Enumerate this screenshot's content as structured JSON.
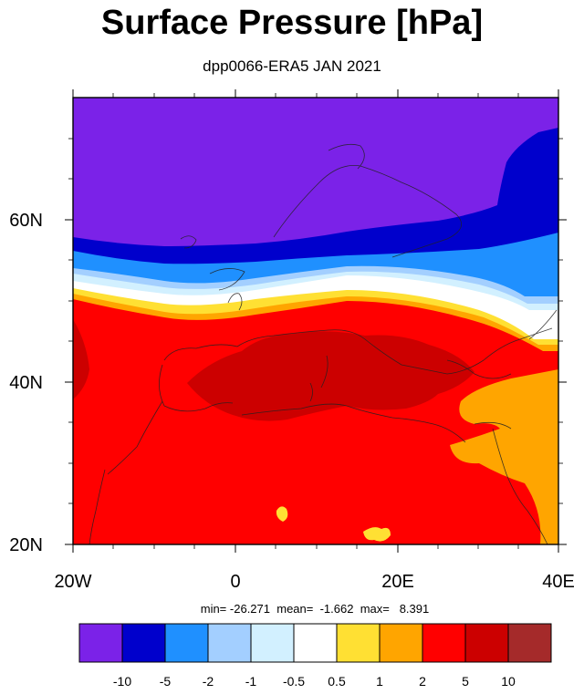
{
  "title": "Surface Pressure [hPa]",
  "subtitle": "dpp0066-ERA5 JAN 2021",
  "stats": {
    "min_label": "min=",
    "min": "-26.271",
    "mean_label": "mean=",
    "mean": "-1.662",
    "max_label": "max=",
    "max": "8.391"
  },
  "map": {
    "lon_range": [
      -20,
      40
    ],
    "lat_range": [
      20,
      75
    ],
    "x_ticks": [
      "20W",
      "0",
      "20E",
      "40E"
    ],
    "y_ticks": [
      "20N",
      "40N",
      "60N"
    ]
  },
  "colorbar": {
    "colors": [
      "#7b22e8",
      "#0000cc",
      "#1f90ff",
      "#a3cfff",
      "#d2f0ff",
      "#ffffff",
      "#ffe033",
      "#ffa500",
      "#ff0000",
      "#cc0000",
      "#a52a2a"
    ],
    "labels": [
      "-10",
      "-5",
      "-2",
      "-1",
      "-0.5",
      "0.5",
      "1",
      "2",
      "5",
      "10"
    ]
  }
}
